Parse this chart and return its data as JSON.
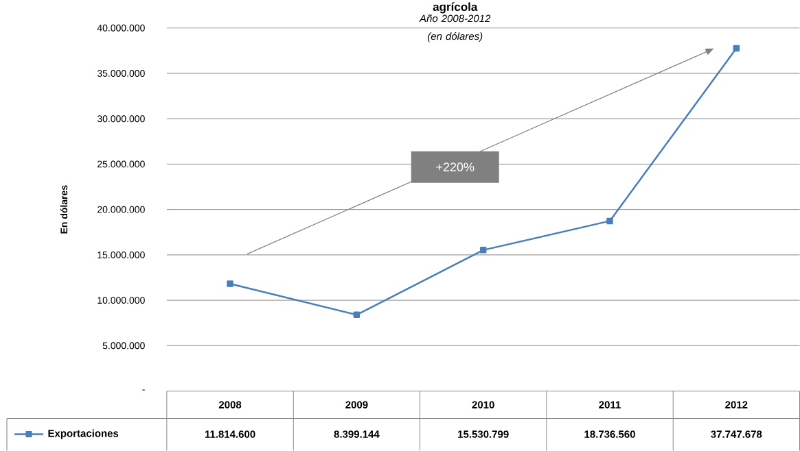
{
  "chart_data": {
    "type": "line",
    "title": "agrícola",
    "subtitle": "Año 2008-2012 (en dólares)",
    "ylabel": "En dólares",
    "categories": [
      "2008",
      "2009",
      "2010",
      "2011",
      "2012"
    ],
    "series": [
      {
        "name": "Exportaciones",
        "color": "#4a7ebb",
        "values": [
          11814600,
          8399144,
          15530799,
          18736560,
          37747678
        ],
        "value_labels": [
          "11.814.600",
          "8.399.144",
          "15.530.799",
          "18.736.560",
          "37.747.678"
        ]
      }
    ],
    "ylim": [
      0,
      40000000
    ],
    "yticks": [
      {
        "value": 0,
        "label": "-"
      },
      {
        "value": 5000000,
        "label": "5.000.000"
      },
      {
        "value": 10000000,
        "label": "10.000.000"
      },
      {
        "value": 15000000,
        "label": "15.000.000"
      },
      {
        "value": 20000000,
        "label": "20.000.000"
      },
      {
        "value": 25000000,
        "label": "25.000.000"
      },
      {
        "value": 30000000,
        "label": "30.000.000"
      },
      {
        "value": 35000000,
        "label": "35.000.000"
      },
      {
        "value": 40000000,
        "label": "40.000.000"
      }
    ],
    "grid": "y",
    "marker": "square",
    "line_style": "solid",
    "legend": "bottom",
    "annotations": [
      "+220%"
    ]
  }
}
